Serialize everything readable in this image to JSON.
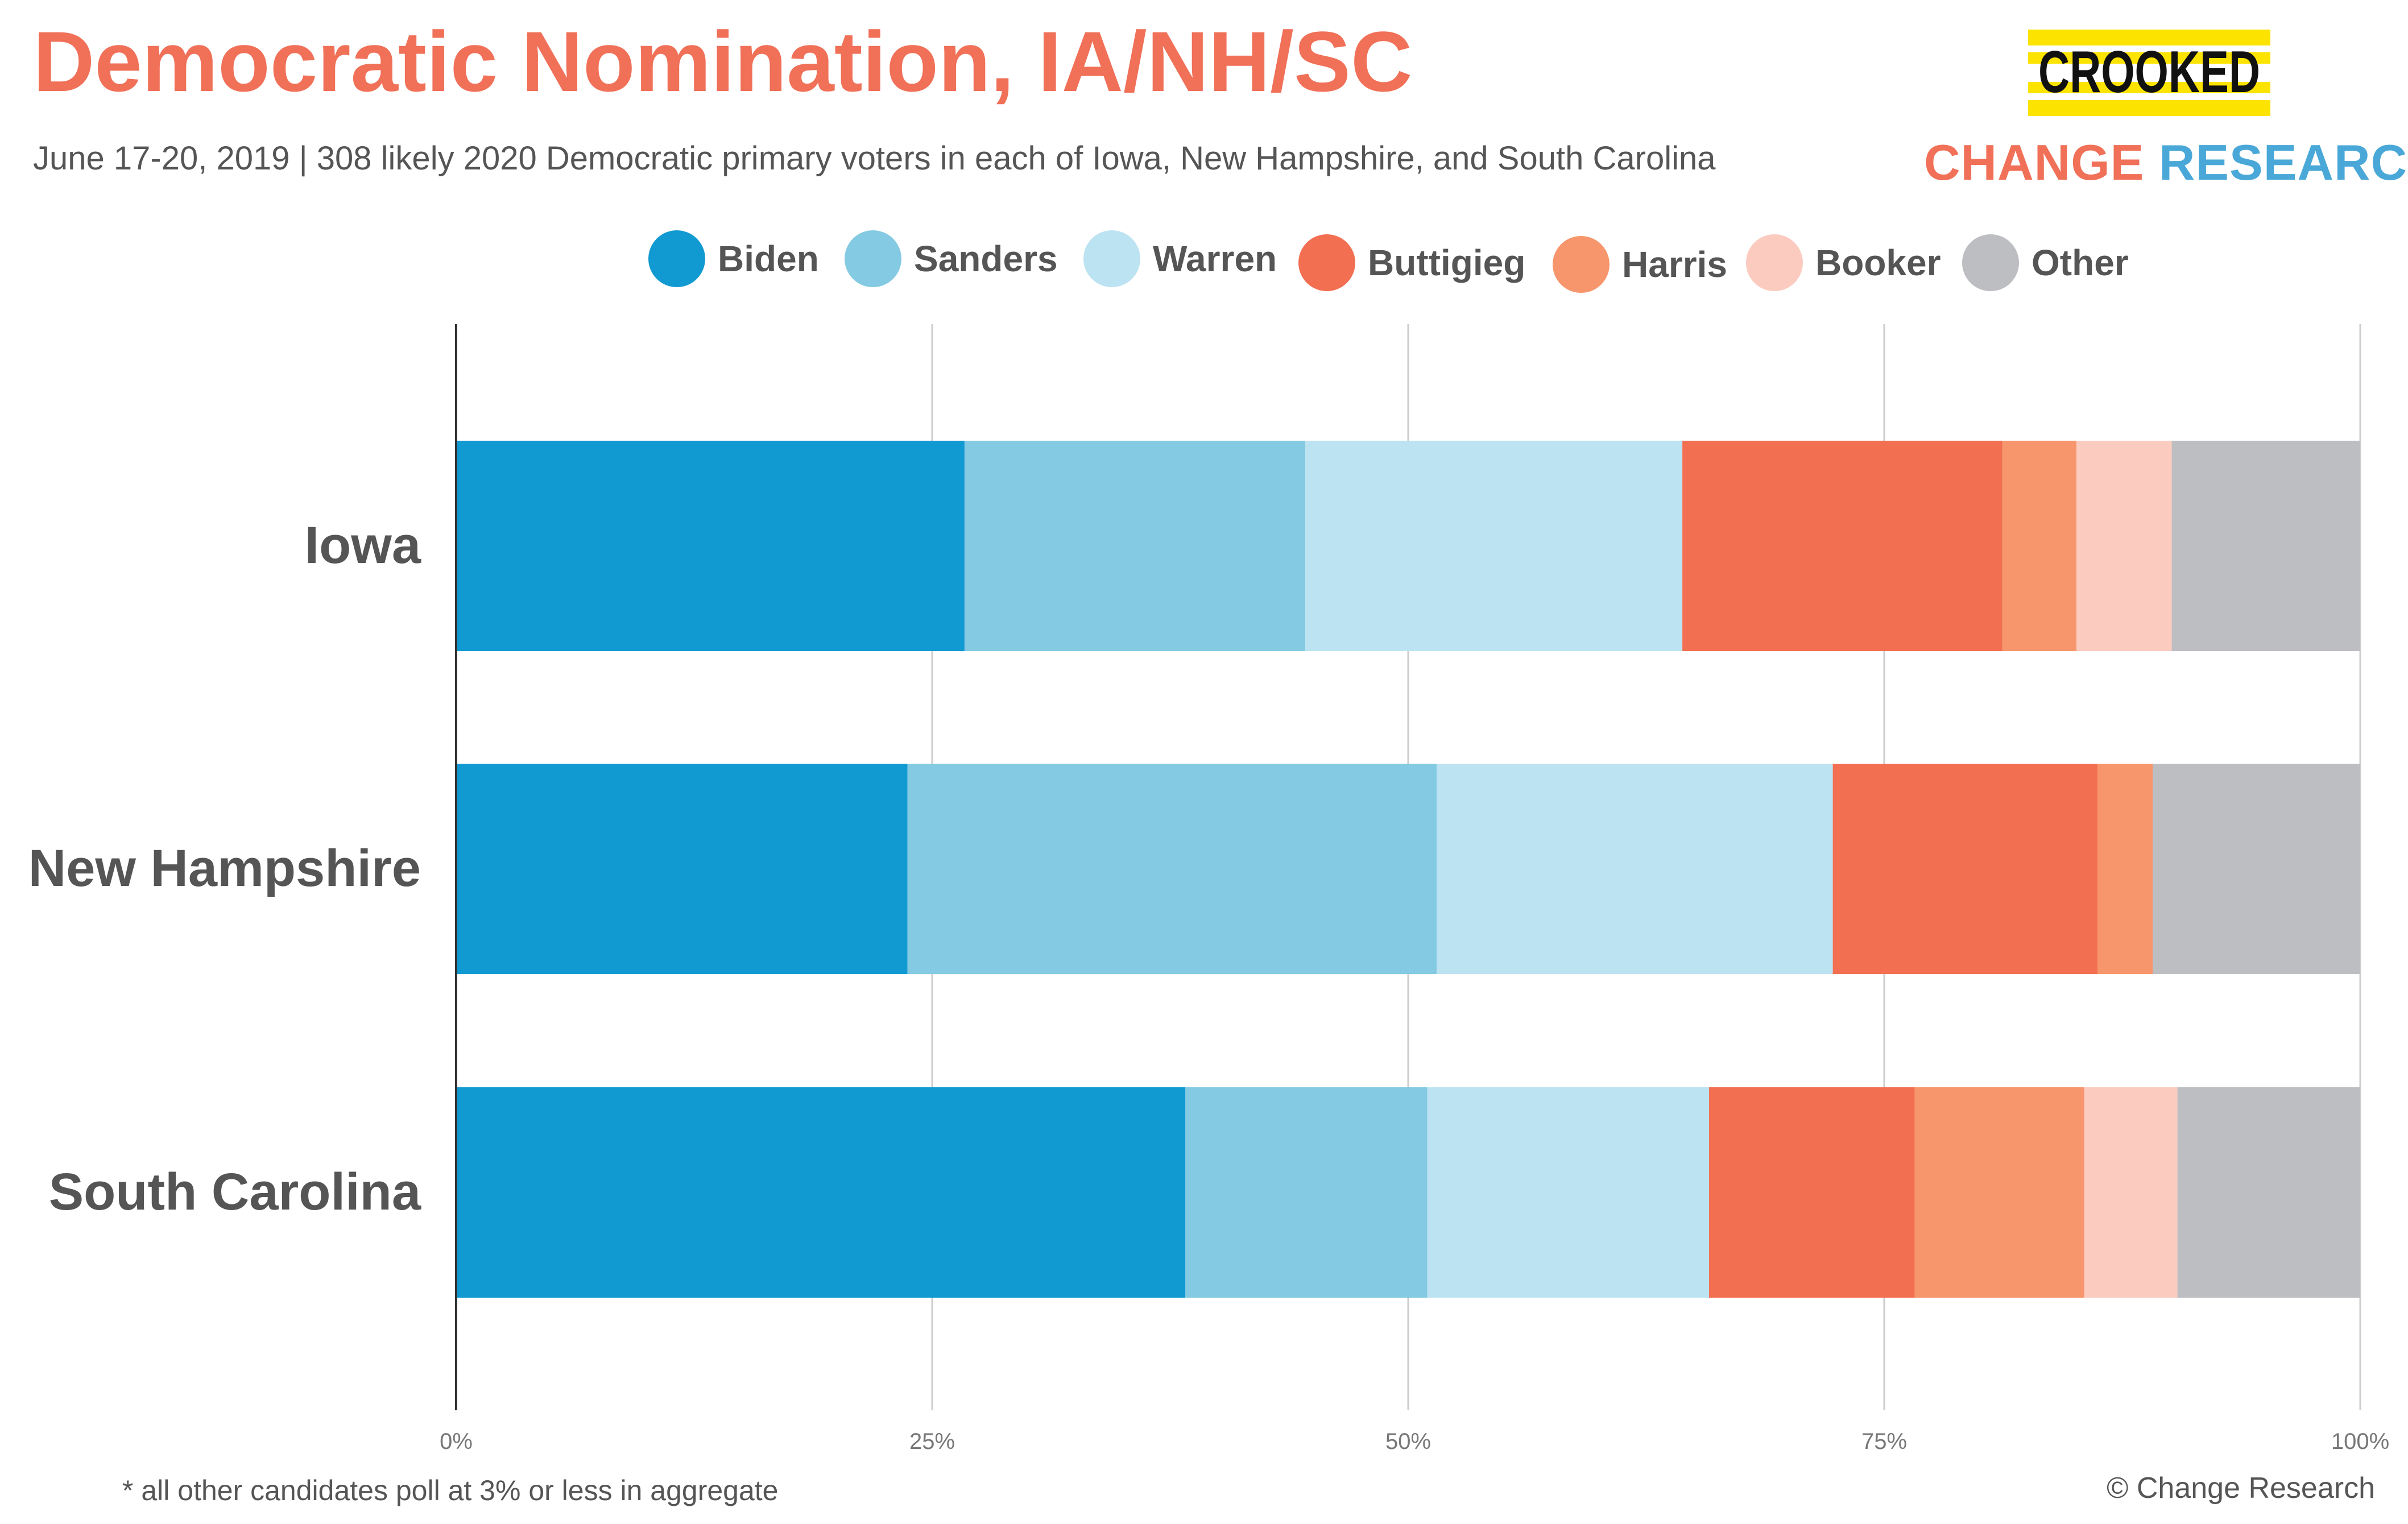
{
  "header": {
    "title": "Democratic Nomination, IA/NH/SC",
    "subtitle": "June 17-20, 2019  | 308 likely 2020 Democratic primary voters in each of Iowa, New Hampshire, and South Carolina"
  },
  "logos": {
    "crooked": "CROOKED",
    "change_research_part1": "CHANGE",
    "change_research_part2": "RESEARCH",
    "trademark": "™"
  },
  "colors": {
    "title": "#f07058",
    "Biden": "#119ad1",
    "Sanders": "#83cae2",
    "Warren": "#bce3f2",
    "Buttigieg": "#f26f52",
    "Harris": "#f7956c",
    "Booker": "#fccbc0",
    "Other": "#bdbec1",
    "crooked_yellow": "#fde400"
  },
  "chart_data": {
    "type": "bar",
    "orientation": "horizontal",
    "stacked": true,
    "categories": [
      "Iowa",
      "New Hampshire",
      "South Carolina"
    ],
    "series": [
      {
        "name": "Biden",
        "values": [
          26.7,
          23.7,
          38.3
        ]
      },
      {
        "name": "Sanders",
        "values": [
          17.9,
          27.8,
          12.7
        ]
      },
      {
        "name": "Warren",
        "values": [
          19.8,
          20.8,
          14.8
        ]
      },
      {
        "name": "Buttigieg",
        "values": [
          16.8,
          13.9,
          10.8
        ]
      },
      {
        "name": "Harris",
        "values": [
          3.9,
          2.9,
          8.9
        ]
      },
      {
        "name": "Booker",
        "values": [
          5.0,
          0,
          4.9
        ]
      },
      {
        "name": "Other",
        "values": [
          9.9,
          10.9,
          9.6
        ]
      }
    ],
    "xlim": [
      0,
      100
    ],
    "x_ticks": [
      "0%",
      "25%",
      "50%",
      "75%",
      "100%"
    ],
    "grid": true,
    "legend_position": "top"
  },
  "footer": {
    "footnote": "* all other candidates poll at 3% or less in aggregate",
    "copyright": "© Change Research"
  }
}
